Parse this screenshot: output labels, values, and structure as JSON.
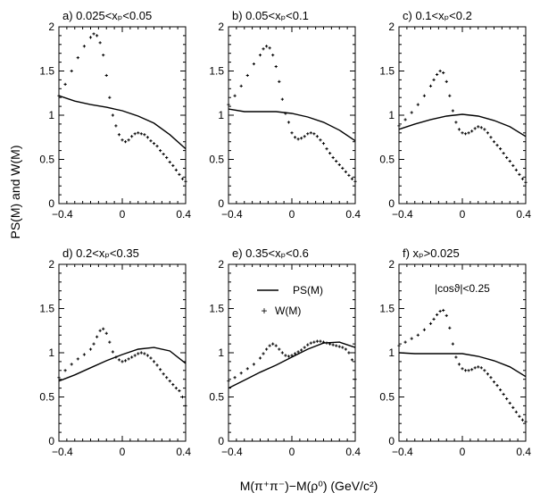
{
  "figure": {
    "ylabel": "PS(M) and W(M)",
    "xlabel": "M(π⁺π⁻)−M(ρ⁰) (GeV/c²)",
    "legend": {
      "solid_label": "PS(M)",
      "points_label": "W(M)",
      "points_symbol": "+"
    }
  },
  "chart_data": [
    {
      "type": "line",
      "title": "a) 0.025<xₚ<0.05",
      "xlim": [
        -0.4,
        0.4
      ],
      "ylim": [
        0,
        2
      ],
      "xticks": [
        "-0.4",
        "0",
        "0.4"
      ],
      "yticks": [
        "0",
        "0.5",
        "1",
        "1.5",
        "2"
      ],
      "series": [
        {
          "name": "PS(M)",
          "style": "line",
          "x": [
            -0.4,
            -0.3,
            -0.2,
            -0.1,
            0.0,
            0.1,
            0.2,
            0.3,
            0.4
          ],
          "y": [
            1.22,
            1.16,
            1.12,
            1.09,
            1.05,
            0.99,
            0.91,
            0.78,
            0.62
          ]
        },
        {
          "name": "W(M)",
          "style": "points",
          "x": [
            -0.4,
            -0.36,
            -0.32,
            -0.28,
            -0.24,
            -0.2,
            -0.18,
            -0.16,
            -0.14,
            -0.12,
            -0.1,
            -0.08,
            -0.06,
            -0.04,
            -0.02,
            0.0,
            0.02,
            0.04,
            0.06,
            0.08,
            0.1,
            0.12,
            0.14,
            0.16,
            0.18,
            0.2,
            0.22,
            0.24,
            0.26,
            0.28,
            0.3,
            0.32,
            0.34,
            0.36,
            0.38,
            0.4
          ],
          "y": [
            1.22,
            1.35,
            1.5,
            1.65,
            1.78,
            1.88,
            1.92,
            1.9,
            1.82,
            1.68,
            1.45,
            1.2,
            1.0,
            0.88,
            0.78,
            0.72,
            0.7,
            0.72,
            0.76,
            0.79,
            0.8,
            0.79,
            0.78,
            0.75,
            0.71,
            0.68,
            0.65,
            0.6,
            0.56,
            0.52,
            0.47,
            0.43,
            0.38,
            0.33,
            0.28,
            0.25
          ]
        }
      ]
    },
    {
      "type": "line",
      "title": "b) 0.05<xₚ<0.1",
      "xlim": [
        -0.4,
        0.4
      ],
      "ylim": [
        0,
        2
      ],
      "xticks": [
        "-0.4",
        "0",
        "0.4"
      ],
      "yticks": [
        "0",
        "0.5",
        "1",
        "1.5",
        "2"
      ],
      "series": [
        {
          "name": "PS(M)",
          "style": "line",
          "x": [
            -0.4,
            -0.3,
            -0.2,
            -0.1,
            0.0,
            0.1,
            0.2,
            0.3,
            0.4
          ],
          "y": [
            1.07,
            1.04,
            1.04,
            1.04,
            1.02,
            0.98,
            0.92,
            0.83,
            0.71
          ]
        },
        {
          "name": "W(M)",
          "style": "points",
          "x": [
            -0.4,
            -0.36,
            -0.32,
            -0.28,
            -0.24,
            -0.2,
            -0.18,
            -0.16,
            -0.14,
            -0.12,
            -0.1,
            -0.08,
            -0.06,
            -0.04,
            -0.02,
            0.0,
            0.02,
            0.04,
            0.06,
            0.08,
            0.1,
            0.12,
            0.14,
            0.16,
            0.18,
            0.2,
            0.22,
            0.24,
            0.26,
            0.28,
            0.3,
            0.32,
            0.34,
            0.36,
            0.38,
            0.4
          ],
          "y": [
            1.12,
            1.22,
            1.33,
            1.45,
            1.58,
            1.68,
            1.75,
            1.78,
            1.76,
            1.68,
            1.55,
            1.38,
            1.18,
            1.02,
            0.92,
            0.8,
            0.75,
            0.73,
            0.74,
            0.76,
            0.79,
            0.8,
            0.79,
            0.76,
            0.72,
            0.68,
            0.62,
            0.57,
            0.52,
            0.48,
            0.44,
            0.4,
            0.36,
            0.32,
            0.28,
            0.25
          ]
        }
      ]
    },
    {
      "type": "line",
      "title": "c) 0.1<xₚ<0.2",
      "xlim": [
        -0.4,
        0.4
      ],
      "ylim": [
        0,
        2
      ],
      "xticks": [
        "-0.4",
        "0",
        "0.4"
      ],
      "yticks": [
        "0",
        "0.5",
        "1",
        "1.5",
        "2"
      ],
      "series": [
        {
          "name": "PS(M)",
          "style": "line",
          "x": [
            -0.4,
            -0.3,
            -0.2,
            -0.1,
            0.0,
            0.1,
            0.2,
            0.3,
            0.4
          ],
          "y": [
            0.84,
            0.9,
            0.95,
            0.99,
            1.01,
            0.99,
            0.94,
            0.87,
            0.76
          ]
        },
        {
          "name": "W(M)",
          "style": "points",
          "x": [
            -0.4,
            -0.36,
            -0.32,
            -0.28,
            -0.24,
            -0.2,
            -0.18,
            -0.16,
            -0.14,
            -0.12,
            -0.1,
            -0.08,
            -0.06,
            -0.04,
            -0.02,
            0.0,
            0.02,
            0.04,
            0.06,
            0.08,
            0.1,
            0.12,
            0.14,
            0.16,
            0.18,
            0.2,
            0.22,
            0.24,
            0.26,
            0.28,
            0.3,
            0.32,
            0.34,
            0.36,
            0.38,
            0.4
          ],
          "y": [
            0.88,
            0.95,
            1.03,
            1.12,
            1.22,
            1.33,
            1.4,
            1.46,
            1.5,
            1.48,
            1.38,
            1.22,
            1.05,
            0.92,
            0.84,
            0.8,
            0.79,
            0.8,
            0.82,
            0.85,
            0.87,
            0.86,
            0.84,
            0.8,
            0.75,
            0.7,
            0.66,
            0.62,
            0.57,
            0.52,
            0.48,
            0.43,
            0.38,
            0.33,
            0.28,
            0.24
          ]
        }
      ]
    },
    {
      "type": "line",
      "title": "d) 0.2<xₚ<0.35",
      "xlim": [
        -0.4,
        0.4
      ],
      "ylim": [
        0,
        2
      ],
      "xticks": [
        "-0.4",
        "0",
        "0.4"
      ],
      "yticks": [
        "0",
        "0.5",
        "1",
        "1.5",
        "2"
      ],
      "series": [
        {
          "name": "PS(M)",
          "style": "line",
          "x": [
            -0.4,
            -0.3,
            -0.2,
            -0.1,
            0.0,
            0.1,
            0.2,
            0.3,
            0.4
          ],
          "y": [
            0.68,
            0.75,
            0.83,
            0.91,
            0.98,
            1.04,
            1.06,
            1.02,
            0.88
          ]
        },
        {
          "name": "W(M)",
          "style": "points",
          "x": [
            -0.4,
            -0.36,
            -0.32,
            -0.28,
            -0.24,
            -0.2,
            -0.18,
            -0.16,
            -0.14,
            -0.12,
            -0.1,
            -0.08,
            -0.06,
            -0.04,
            -0.02,
            0.0,
            0.02,
            0.04,
            0.06,
            0.08,
            0.1,
            0.12,
            0.14,
            0.16,
            0.18,
            0.2,
            0.22,
            0.24,
            0.26,
            0.28,
            0.3,
            0.32,
            0.34,
            0.36,
            0.38,
            0.4
          ],
          "y": [
            0.72,
            0.8,
            0.87,
            0.93,
            0.98,
            1.04,
            1.1,
            1.18,
            1.25,
            1.27,
            1.22,
            1.12,
            1.01,
            0.95,
            0.92,
            0.9,
            0.91,
            0.93,
            0.95,
            0.97,
            0.99,
            1.0,
            0.99,
            0.97,
            0.94,
            0.9,
            0.86,
            0.81,
            0.76,
            0.72,
            0.68,
            0.64,
            0.6,
            0.57,
            0.5,
            0.4
          ]
        }
      ]
    },
    {
      "type": "line",
      "title": "e) 0.35<xₚ<0.6",
      "xlim": [
        -0.4,
        0.4
      ],
      "ylim": [
        0,
        2
      ],
      "xticks": [
        "-0.4",
        "0",
        "0.4"
      ],
      "yticks": [
        "0",
        "0.5",
        "1",
        "1.5",
        "2"
      ],
      "series": [
        {
          "name": "PS(M)",
          "style": "line",
          "x": [
            -0.4,
            -0.3,
            -0.2,
            -0.1,
            0.0,
            0.1,
            0.2,
            0.3,
            0.4
          ],
          "y": [
            0.6,
            0.69,
            0.78,
            0.86,
            0.95,
            1.04,
            1.11,
            1.12,
            1.06
          ]
        },
        {
          "name": "W(M)",
          "style": "points",
          "x": [
            -0.4,
            -0.36,
            -0.32,
            -0.28,
            -0.24,
            -0.2,
            -0.18,
            -0.16,
            -0.14,
            -0.12,
            -0.1,
            -0.08,
            -0.06,
            -0.04,
            -0.02,
            0.0,
            0.02,
            0.04,
            0.06,
            0.08,
            0.1,
            0.12,
            0.14,
            0.16,
            0.18,
            0.2,
            0.22,
            0.24,
            0.26,
            0.28,
            0.3,
            0.32,
            0.34,
            0.36,
            0.38,
            0.4
          ],
          "y": [
            0.68,
            0.72,
            0.77,
            0.82,
            0.87,
            0.94,
            0.99,
            1.04,
            1.08,
            1.1,
            1.08,
            1.04,
            1.0,
            0.97,
            0.96,
            0.97,
            0.99,
            1.01,
            1.03,
            1.06,
            1.09,
            1.11,
            1.12,
            1.13,
            1.13,
            1.12,
            1.11,
            1.1,
            1.09,
            1.08,
            1.07,
            1.06,
            1.04,
            1.0,
            0.92,
            0.7
          ]
        }
      ]
    },
    {
      "type": "line",
      "title": "f) xₚ>0.025",
      "annotation": "|cosϑ|<0.25",
      "xlim": [
        -0.4,
        0.4
      ],
      "ylim": [
        0,
        2
      ],
      "xticks": [
        "-0.4",
        "0",
        "0.4"
      ],
      "yticks": [
        "0",
        "0.5",
        "1",
        "1.5",
        "2"
      ],
      "series": [
        {
          "name": "PS(M)",
          "style": "line",
          "x": [
            -0.4,
            -0.3,
            -0.2,
            -0.1,
            0.0,
            0.1,
            0.2,
            0.3,
            0.4
          ],
          "y": [
            1.0,
            0.99,
            0.99,
            0.99,
            0.99,
            0.96,
            0.91,
            0.84,
            0.73
          ]
        },
        {
          "name": "W(M)",
          "style": "points",
          "x": [
            -0.4,
            -0.36,
            -0.32,
            -0.28,
            -0.24,
            -0.2,
            -0.18,
            -0.16,
            -0.14,
            -0.12,
            -0.1,
            -0.08,
            -0.06,
            -0.04,
            -0.02,
            0.0,
            0.02,
            0.04,
            0.06,
            0.08,
            0.1,
            0.12,
            0.14,
            0.16,
            0.18,
            0.2,
            0.22,
            0.24,
            0.26,
            0.28,
            0.3,
            0.32,
            0.34,
            0.36,
            0.38,
            0.4
          ],
          "y": [
            1.08,
            1.12,
            1.16,
            1.2,
            1.26,
            1.33,
            1.38,
            1.43,
            1.47,
            1.48,
            1.42,
            1.28,
            1.1,
            0.95,
            0.87,
            0.82,
            0.8,
            0.8,
            0.81,
            0.83,
            0.84,
            0.83,
            0.8,
            0.76,
            0.72,
            0.67,
            0.63,
            0.58,
            0.53,
            0.48,
            0.43,
            0.38,
            0.33,
            0.28,
            0.24,
            0.22
          ]
        }
      ]
    }
  ]
}
